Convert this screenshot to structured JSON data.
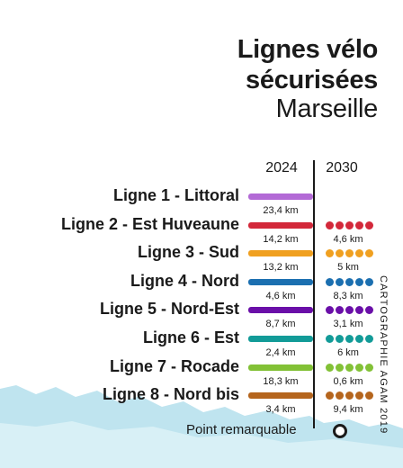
{
  "title_line1": "Lignes vélo",
  "title_line2": "sécurisées",
  "subtitle": "Marseille",
  "credit": "CARTOGRAPHIE AGAM 2019",
  "legend": {
    "label": "Point remarquable"
  },
  "colors": {
    "sea": "#bfe4ef"
  },
  "chart_data": {
    "type": "bar",
    "title": "Lignes vélo sécurisées",
    "subtitle": "Marseille",
    "years": [
      "2024",
      "2030"
    ],
    "unit": "km",
    "categories": [
      "Ligne 1 - Littoral",
      "Ligne 2 - Est Huveaune",
      "Ligne 3 - Sud",
      "Ligne 4 - Nord",
      "Ligne 5 - Nord-Est",
      "Ligne 6 - Est",
      "Ligne 7 - Rocade",
      "Ligne 8 - Nord bis"
    ],
    "series": [
      {
        "name": "2024",
        "values": [
          23.4,
          14.2,
          13.2,
          4.6,
          8.7,
          2.4,
          18.3,
          3.4
        ],
        "labels": [
          "23,4 km",
          "14,2 km",
          "13,2 km",
          "4,6 km",
          "8,7 km",
          "2,4 km",
          "18,3 km",
          "3,4 km"
        ]
      },
      {
        "name": "2030",
        "values": [
          null,
          4.6,
          5,
          8.3,
          3.1,
          6,
          0.6,
          9.4
        ],
        "labels": [
          "",
          "4,6 km",
          "5 km",
          "8,3 km",
          "3,1 km",
          "6 km",
          "0,6 km",
          "9,4 km"
        ]
      }
    ],
    "line_colors": [
      "#b36ad6",
      "#d3283a",
      "#f0a020",
      "#1b6fb0",
      "#6a0fa8",
      "#129b98",
      "#82c136",
      "#b5651d"
    ]
  }
}
